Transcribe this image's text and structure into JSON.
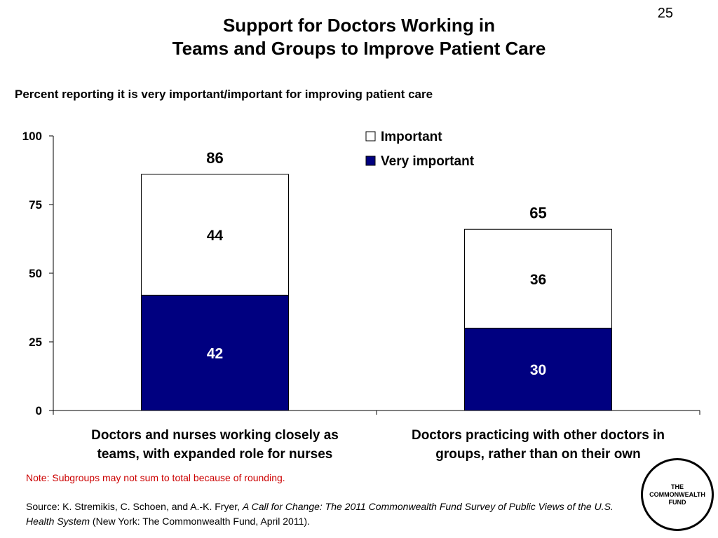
{
  "page_number": "25",
  "note": "Note: Subgroups may not sum to total because of rounding.",
  "source": {
    "prefix": "Source: K. Stremikis, C. Schoen, and A.-K. Fryer, ",
    "title": "A Call for Change: The 2011 Commonwealth Fund Survey of Public Views of the U.S. Health System",
    "suffix": " (New York: The Commonwealth Fund, April 2011)."
  },
  "logo": {
    "line1": "THE",
    "line2": "COMMONWEALTH",
    "line3": "FUND"
  },
  "colors": {
    "very_important": "#000080",
    "important": "#ffffff",
    "note": "#cc0000"
  },
  "chart_data": {
    "type": "bar",
    "stacked": true,
    "title": [
      "Support for Doctors Working in",
      "Teams and Groups to Improve Patient Care"
    ],
    "subtitle": "Percent reporting it is very important/important for improving patient care",
    "categories": [
      [
        "Doctors and nurses working closely as",
        "teams, with expanded role for nurses"
      ],
      [
        "Doctors practicing with other doctors in",
        "groups, rather than on their own"
      ]
    ],
    "series": [
      {
        "name": "Very important",
        "values": [
          42,
          30
        ],
        "color": "#000080"
      },
      {
        "name": "Important",
        "values": [
          44,
          36
        ],
        "color": "#ffffff"
      }
    ],
    "totals": [
      86,
      65
    ],
    "ylim": [
      0,
      100
    ],
    "yticks": [
      0,
      25,
      50,
      75,
      100
    ],
    "legend": "top-right",
    "grid": false
  }
}
